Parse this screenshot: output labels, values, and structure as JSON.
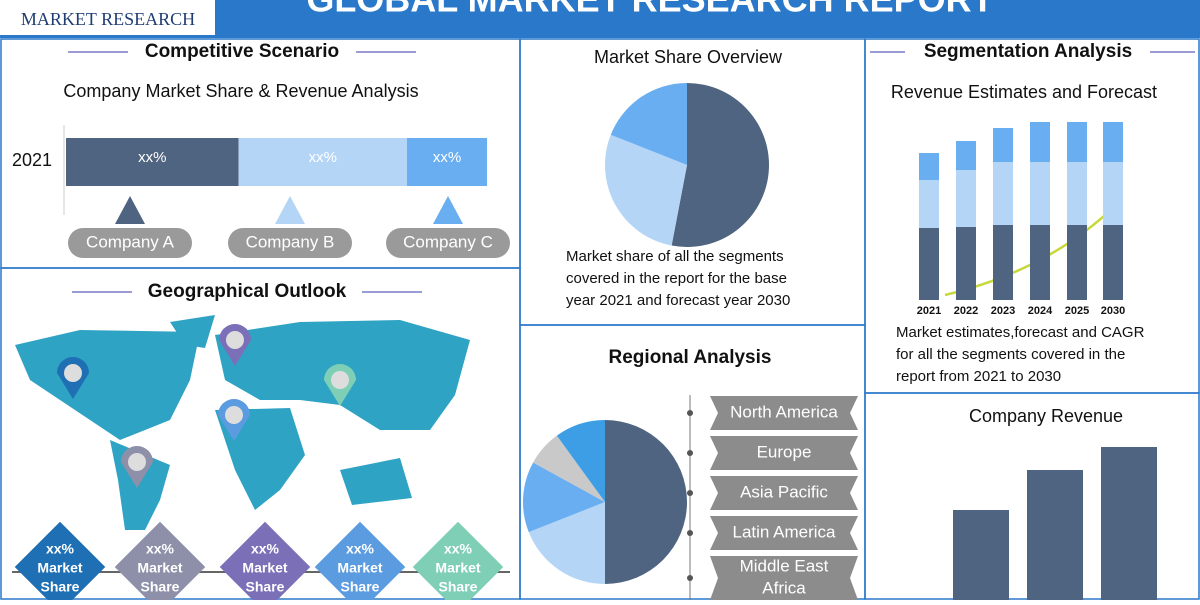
{
  "header": {
    "logo": "MARKET RESEARCH",
    "title": "GLOBAL MARKET RESEARCH REPORT"
  },
  "competitive_scenario": {
    "title": "Competitive Scenario",
    "subtitle": "Company Market Share & Revenue Analysis",
    "year": "2021",
    "segments": [
      {
        "label": "xx%",
        "share": 41,
        "color": "#4f6480",
        "company": "Company A"
      },
      {
        "label": "xx%",
        "share": 40,
        "color": "#b5d5f7",
        "company": "Company B"
      },
      {
        "label": "xx%",
        "share": 19,
        "color": "#6aaef2",
        "company": "Company C"
      }
    ]
  },
  "geographical_outlook": {
    "title": "Geographical Outlook",
    "markers": [
      {
        "lines": [
          "xx%",
          "Market",
          "Share"
        ],
        "color": "#1f6fb5"
      },
      {
        "lines": [
          "xx%",
          "Market",
          "Share"
        ],
        "color": "#8d90a8"
      },
      {
        "lines": [
          "xx%",
          "Market",
          "Share"
        ],
        "color": "#7b70b8"
      },
      {
        "lines": [
          "xx%",
          "Market",
          "Share"
        ],
        "color": "#5b9be0"
      },
      {
        "lines": [
          "xx%",
          "Market",
          "Share"
        ],
        "color": "#7fcfb6"
      }
    ]
  },
  "market_share_overview": {
    "title": "Market Share Overview",
    "slices": [
      53,
      28,
      19
    ],
    "colors": [
      "#4f6480",
      "#b5d5f7",
      "#6aaef2"
    ],
    "caption": [
      "Market share of all the segments",
      "covered in the report for the base",
      "year 2021 and forecast year 2030"
    ]
  },
  "regional_analysis": {
    "title": "Regional Analysis",
    "slices": [
      50,
      19,
      14,
      7,
      10
    ],
    "colors": [
      "#4f6480",
      "#b5d5f7",
      "#6aaef2",
      "#c9c9c9",
      "#3d9ee6"
    ],
    "regions": [
      [
        "North America"
      ],
      [
        "Europe"
      ],
      [
        "Asia Pacific"
      ],
      [
        "Latin America"
      ],
      [
        "Middle East",
        "Africa"
      ]
    ]
  },
  "segmentation_analysis": {
    "title": "Segmentation Analysis",
    "subtitle": "Revenue Estimates and Forecast",
    "years": [
      "2021",
      "2022",
      "2023",
      "2024",
      "2025",
      "2030"
    ],
    "series": [
      {
        "color": "#4f6480",
        "values": [
          72,
          73,
          75,
          75,
          75,
          75
        ]
      },
      {
        "color": "#b5d5f7",
        "values": [
          48,
          57,
          63,
          63,
          63,
          63
        ]
      },
      {
        "color": "#6aaef2",
        "values": [
          27,
          29,
          34,
          40,
          40,
          40
        ]
      }
    ],
    "caption": [
      "Market estimates,forecast and CAGR",
      "for all the segments covered in the",
      "report from 2021 to 2030"
    ]
  },
  "company_revenue": {
    "title": "Company Revenue",
    "values": [
      90,
      130,
      153
    ],
    "color": "#4f6480"
  }
}
